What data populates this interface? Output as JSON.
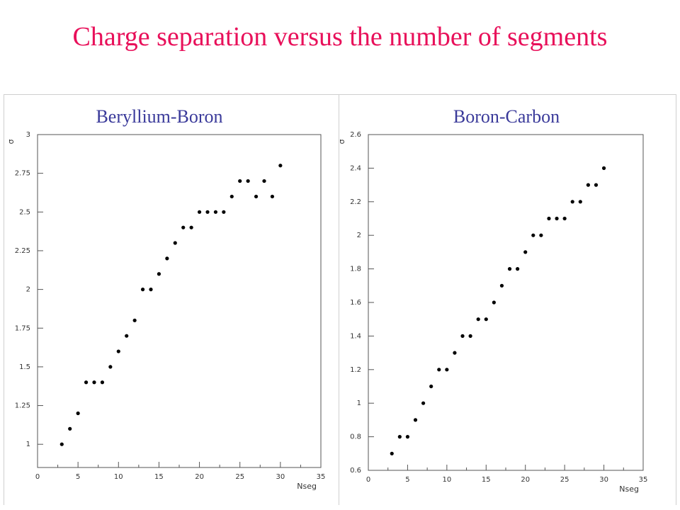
{
  "slide": {
    "title": "Charge separation versus the number of segments"
  },
  "chart_data": [
    {
      "type": "scatter",
      "title": "Beryllium-Boron",
      "xlabel": "Nseg",
      "ylabel": "σ",
      "xlim": [
        0,
        35
      ],
      "ylim": [
        0.85,
        3.0
      ],
      "xticks": [
        0,
        5,
        10,
        15,
        20,
        25,
        30,
        35
      ],
      "yticks": [
        1,
        1.25,
        1.5,
        1.75,
        2,
        2.25,
        2.5,
        2.75,
        3
      ],
      "ytick_labels": [
        "1",
        "1.25",
        "1.5",
        "1.75",
        "2",
        "2.25",
        "2.5",
        "2.75",
        "3"
      ],
      "x": [
        3,
        4,
        5,
        6,
        7,
        8,
        9,
        10,
        11,
        12,
        13,
        14,
        15,
        16,
        17,
        18,
        19,
        20,
        21,
        22,
        23,
        24,
        25,
        26,
        27,
        28,
        29,
        30
      ],
      "y": [
        1.0,
        1.1,
        1.2,
        1.4,
        1.4,
        1.4,
        1.5,
        1.6,
        1.7,
        1.8,
        2.0,
        2.0,
        2.1,
        2.2,
        2.3,
        2.4,
        2.4,
        2.5,
        2.5,
        2.5,
        2.5,
        2.6,
        2.7,
        2.7,
        2.6,
        2.7,
        2.6,
        2.8
      ],
      "marker_color": "#000000"
    },
    {
      "type": "scatter",
      "title": "Boron-Carbon",
      "xlabel": "Nseg",
      "ylabel": "σ",
      "xlim": [
        0,
        35
      ],
      "ylim": [
        0.6,
        2.6
      ],
      "xticks": [
        0,
        5,
        10,
        15,
        20,
        25,
        30,
        35
      ],
      "yticks": [
        0.6,
        0.8,
        1,
        1.2,
        1.4,
        1.6,
        1.8,
        2,
        2.2,
        2.4,
        2.6
      ],
      "ytick_labels": [
        "0.6",
        "0.8",
        "1",
        "1.2",
        "1.4",
        "1.6",
        "1.8",
        "2",
        "2.2",
        "2.4",
        "2.6"
      ],
      "x": [
        3,
        4,
        5,
        6,
        7,
        8,
        9,
        10,
        11,
        12,
        13,
        14,
        15,
        16,
        17,
        18,
        19,
        20,
        21,
        22,
        23,
        24,
        25,
        26,
        27,
        28,
        29,
        30
      ],
      "y": [
        0.7,
        0.8,
        0.8,
        0.9,
        1.0,
        1.1,
        1.2,
        1.2,
        1.3,
        1.4,
        1.4,
        1.5,
        1.5,
        1.6,
        1.7,
        1.8,
        1.8,
        1.9,
        2.0,
        2.0,
        2.1,
        2.1,
        2.1,
        2.2,
        2.2,
        2.3,
        2.3,
        2.4
      ],
      "marker_color": "#000000"
    }
  ]
}
